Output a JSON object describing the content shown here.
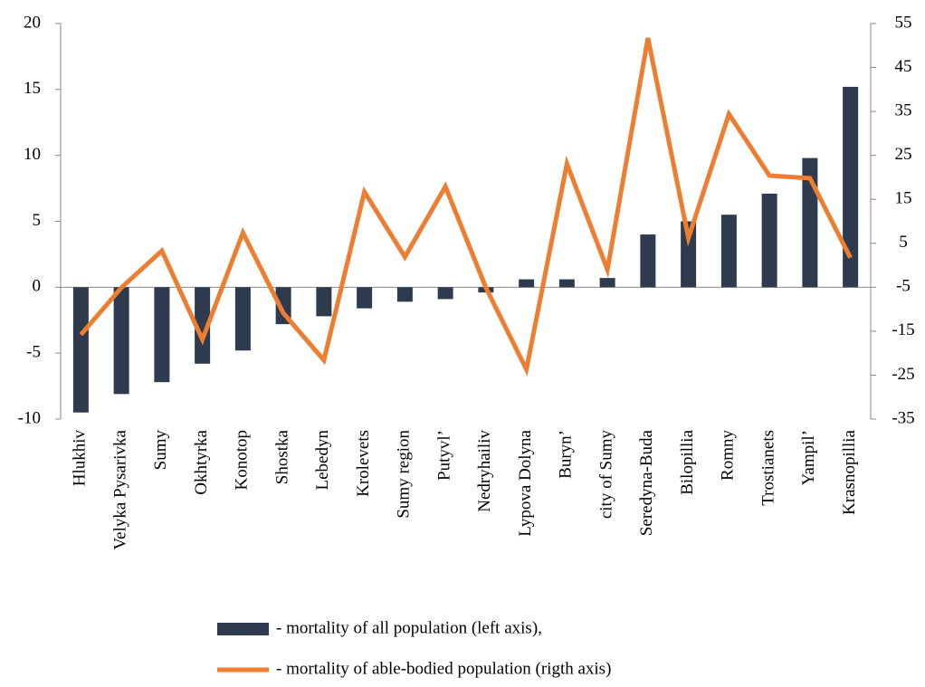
{
  "chart_data": {
    "type": "bar-line",
    "categories": [
      "Hlukhiv",
      "Velyka Pysarivka",
      "Sumy",
      "Okhtyrka",
      "Konotop",
      "Shostka",
      "Lebedyn",
      "Krolevets",
      "Sumy region",
      "Putyvl’",
      "Nedryhailiv",
      "Lypova Dolyna",
      "Buryn’",
      "city of Sumy",
      "Seredyna-Buda",
      "Bilopillia",
      "Romny",
      "Trostianets",
      "Yampil’",
      "Krasnopillia"
    ],
    "series": [
      {
        "name": "- mortality of all population (left axis),",
        "color": "#2e3a4e",
        "type": "bar",
        "values": [
          -9.5,
          -8.1,
          -7.2,
          -5.8,
          -4.8,
          -2.8,
          -2.2,
          -1.6,
          -1.1,
          -0.9,
          -0.4,
          0.6,
          0.6,
          0.7,
          4.0,
          5.0,
          5.5,
          7.1,
          9.8,
          15.2
        ]
      },
      {
        "name": "- mortality of able-bodied population (rigth axis)",
        "color": "#ed7d31",
        "type": "line",
        "axis": "y2",
        "values": [
          -15.8,
          -5.1,
          3.3,
          -16.9,
          7.4,
          -10.9,
          -21.6,
          16.7,
          1.9,
          17.9,
          -5.1,
          -23.7,
          23.1,
          -1.0,
          51.7,
          6.2,
          34.4,
          20.4,
          19.8,
          1.7
        ]
      }
    ],
    "ylim": [
      -10,
      20
    ],
    "yticks": [
      -10,
      -5,
      0,
      5,
      10,
      15,
      20
    ],
    "y2lim": [
      -35,
      55
    ],
    "y2ticks": [
      -35,
      -25,
      -15,
      -5,
      5,
      15,
      25,
      35,
      45,
      55
    ]
  }
}
